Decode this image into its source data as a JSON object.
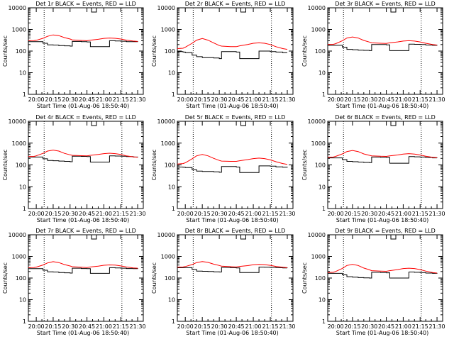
{
  "figure": {
    "background": "#ffffff",
    "axis_color": "#000000",
    "events_color": "#000000",
    "lld_color": "#ff0000"
  },
  "chart_data": [
    {
      "type": "line",
      "title": "Det 1r BLACK = Events, RED = LLD",
      "xlabel": "Start Time (01-Aug-06 18:50:40)",
      "ylabel": "Counts/sec",
      "ylim": [
        1,
        10000
      ],
      "yscale": "log",
      "x_tick_labels": [
        "20:00",
        "20:15",
        "20:30",
        "20:45",
        "21:00",
        "21:15",
        "21:30"
      ],
      "y_tick_labels": [
        "1",
        "10",
        "100",
        "1000",
        "10000"
      ],
      "dotted_markers": [
        "20:07",
        "21:16"
      ],
      "legend_box": "top-center",
      "x": [
        "19:53",
        "19:58",
        "20:00",
        "20:06",
        "20:10",
        "20:15",
        "20:20",
        "20:25",
        "20:30",
        "20:32",
        "20:40",
        "20:45",
        "20:48",
        "20:55",
        "21:00",
        "21:05",
        "21:10",
        "21:15",
        "21:20",
        "21:26",
        "21:30"
      ],
      "series": [
        {
          "name": "Events",
          "color": "#000000",
          "values": [
            270,
            270,
            270,
            230,
            195,
            190,
            180,
            175,
            170,
            280,
            270,
            265,
            160,
            160,
            160,
            300,
            295,
            285,
            270,
            270,
            265
          ]
        },
        {
          "name": "LLD",
          "color": "#ff0000",
          "values": [
            300,
            305,
            315,
            390,
            480,
            560,
            520,
            420,
            360,
            330,
            310,
            300,
            320,
            350,
            385,
            400,
            390,
            360,
            320,
            290,
            280
          ]
        }
      ]
    },
    {
      "type": "line",
      "title": "Det 2r BLACK = Events, RED = LLD",
      "xlabel": "Start Time (01-Aug-06 18:50:40)",
      "ylabel": "Counts/sec",
      "ylim": [
        1,
        10000
      ],
      "yscale": "log",
      "x_tick_labels": [
        "20:00",
        "20:15",
        "20:30",
        "20:45",
        "21:00",
        "21:15",
        "21:30"
      ],
      "y_tick_labels": [
        "1",
        "10",
        "100",
        "1000",
        "10000"
      ],
      "dotted_markers": [
        "20:07",
        "21:16"
      ],
      "legend_box": "top-center",
      "x": [
        "19:53",
        "19:58",
        "20:00",
        "20:06",
        "20:10",
        "20:15",
        "20:20",
        "20:25",
        "20:30",
        "20:32",
        "20:40",
        "20:45",
        "20:48",
        "20:55",
        "21:00",
        "21:05",
        "21:10",
        "21:15",
        "21:20",
        "21:26",
        "21:30"
      ],
      "series": [
        {
          "name": "Events",
          "color": "#000000",
          "values": [
            95,
            90,
            85,
            65,
            55,
            50,
            50,
            48,
            45,
            95,
            95,
            90,
            45,
            45,
            45,
            100,
            100,
            95,
            90,
            85,
            85
          ]
        },
        {
          "name": "LLD",
          "color": "#ff0000",
          "values": [
            130,
            135,
            150,
            230,
            320,
            380,
            320,
            240,
            180,
            170,
            160,
            160,
            175,
            200,
            230,
            240,
            230,
            200,
            160,
            130,
            120
          ]
        }
      ]
    },
    {
      "type": "line",
      "title": "Det 3r BLACK = Events, RED = LLD",
      "xlabel": "Start Time (01-Aug-06 18:50:40)",
      "ylabel": "Counts/sec",
      "ylim": [
        1,
        10000
      ],
      "yscale": "log",
      "x_tick_labels": [
        "20:00",
        "20:15",
        "20:30",
        "20:45",
        "21:00",
        "21:15",
        "21:30"
      ],
      "y_tick_labels": [
        "1",
        "10",
        "100",
        "1000",
        "10000"
      ],
      "dotted_markers": [
        "20:07",
        "21:16"
      ],
      "legend_box": "top-center",
      "x": [
        "19:53",
        "19:58",
        "20:00",
        "20:06",
        "20:10",
        "20:15",
        "20:20",
        "20:25",
        "20:30",
        "20:32",
        "20:40",
        "20:45",
        "20:48",
        "20:55",
        "21:00",
        "21:05",
        "21:10",
        "21:15",
        "21:20",
        "21:26",
        "21:30"
      ],
      "series": [
        {
          "name": "Events",
          "color": "#000000",
          "values": [
            185,
            185,
            185,
            150,
            120,
            115,
            110,
            108,
            105,
            200,
            200,
            195,
            105,
            105,
            105,
            210,
            205,
            200,
            190,
            185,
            180
          ]
        },
        {
          "name": "LLD",
          "color": "#ff0000",
          "values": [
            200,
            205,
            220,
            300,
            400,
            450,
            400,
            310,
            260,
            240,
            230,
            225,
            240,
            265,
            290,
            300,
            290,
            265,
            230,
            200,
            190
          ]
        }
      ]
    },
    {
      "type": "line",
      "title": "Det 4r BLACK = Events, RED = LLD",
      "xlabel": "Start Time (01-Aug-06 18:50:40)",
      "ylabel": "Counts/sec",
      "ylim": [
        1,
        10000
      ],
      "yscale": "log",
      "x_tick_labels": [
        "20:00",
        "20:15",
        "20:30",
        "20:45",
        "21:00",
        "21:15",
        "21:30"
      ],
      "y_tick_labels": [
        "1",
        "10",
        "100",
        "1000",
        "10000"
      ],
      "dotted_markers": [
        "20:07",
        "21:16"
      ],
      "legend_box": "top-center",
      "x": [
        "19:53",
        "19:58",
        "20:00",
        "20:06",
        "20:10",
        "20:15",
        "20:20",
        "20:25",
        "20:30",
        "20:32",
        "20:40",
        "20:45",
        "20:48",
        "20:55",
        "21:00",
        "21:05",
        "21:10",
        "21:15",
        "21:20",
        "21:26",
        "21:30"
      ],
      "series": [
        {
          "name": "Events",
          "color": "#000000",
          "values": [
            230,
            230,
            230,
            190,
            160,
            155,
            150,
            145,
            140,
            250,
            245,
            240,
            135,
            135,
            135,
            260,
            255,
            250,
            240,
            230,
            225
          ]
        },
        {
          "name": "LLD",
          "color": "#ff0000",
          "values": [
            240,
            245,
            260,
            340,
            430,
            480,
            430,
            340,
            290,
            275,
            265,
            260,
            275,
            300,
            330,
            345,
            330,
            300,
            260,
            235,
            225
          ]
        }
      ]
    },
    {
      "type": "line",
      "title": "Det 5r BLACK = Events, RED = LLD",
      "xlabel": "Start Time (01-Aug-06 18:50:40)",
      "ylabel": "Counts/sec",
      "ylim": [
        1,
        10000
      ],
      "yscale": "log",
      "x_tick_labels": [
        "20:00",
        "20:15",
        "20:30",
        "20:45",
        "21:00",
        "21:15",
        "21:30"
      ],
      "y_tick_labels": [
        "1",
        "10",
        "100",
        "1000",
        "10000"
      ],
      "dotted_markers": [
        "20:07",
        "21:16"
      ],
      "legend_box": "top-center",
      "x": [
        "19:53",
        "19:58",
        "20:00",
        "20:06",
        "20:10",
        "20:15",
        "20:20",
        "20:25",
        "20:30",
        "20:32",
        "20:40",
        "20:45",
        "20:48",
        "20:55",
        "21:00",
        "21:05",
        "21:10",
        "21:15",
        "21:20",
        "21:26",
        "21:30"
      ],
      "series": [
        {
          "name": "Events",
          "color": "#000000",
          "values": [
            80,
            78,
            75,
            60,
            52,
            50,
            50,
            48,
            46,
            85,
            85,
            80,
            45,
            45,
            45,
            90,
            90,
            88,
            82,
            78,
            75
          ]
        },
        {
          "name": "LLD",
          "color": "#ff0000",
          "values": [
            110,
            115,
            125,
            190,
            260,
            300,
            260,
            200,
            160,
            150,
            145,
            145,
            155,
            175,
            195,
            205,
            195,
            170,
            140,
            115,
            105
          ]
        }
      ]
    },
    {
      "type": "line",
      "title": "Det 6r BLACK = Events, RED = LLD",
      "xlabel": "Start Time (01-Aug-06 18:50:40)",
      "ylabel": "Counts/sec",
      "ylim": [
        1,
        10000
      ],
      "yscale": "log",
      "x_tick_labels": [
        "20:00",
        "20:15",
        "20:30",
        "20:45",
        "21:00",
        "21:15",
        "21:30"
      ],
      "y_tick_labels": [
        "1",
        "10",
        "100",
        "1000",
        "10000"
      ],
      "dotted_markers": [
        "20:07",
        "21:16"
      ],
      "legend_box": "top-center",
      "x": [
        "19:53",
        "19:58",
        "20:00",
        "20:06",
        "20:10",
        "20:15",
        "20:20",
        "20:25",
        "20:30",
        "20:32",
        "20:40",
        "20:45",
        "20:48",
        "20:55",
        "21:00",
        "21:05",
        "21:10",
        "21:15",
        "21:20",
        "21:26",
        "21:30"
      ],
      "series": [
        {
          "name": "Events",
          "color": "#000000",
          "values": [
            210,
            210,
            210,
            175,
            145,
            140,
            135,
            130,
            128,
            230,
            225,
            220,
            120,
            120,
            120,
            240,
            235,
            230,
            220,
            210,
            205
          ]
        },
        {
          "name": "LLD",
          "color": "#ff0000",
          "values": [
            225,
            230,
            245,
            320,
            410,
            460,
            410,
            320,
            275,
            260,
            250,
            245,
            260,
            285,
            315,
            330,
            315,
            285,
            250,
            225,
            215
          ]
        }
      ]
    },
    {
      "type": "line",
      "title": "Det 7r BLACK = Events, RED = LLD",
      "xlabel": "Start Time (01-Aug-06 18:50:40)",
      "ylabel": "Counts/sec",
      "ylim": [
        1,
        10000
      ],
      "yscale": "log",
      "x_tick_labels": [
        "20:00",
        "20:15",
        "20:30",
        "20:45",
        "21:00",
        "21:15",
        "21:30"
      ],
      "y_tick_labels": [
        "1",
        "10",
        "100",
        "1000",
        "10000"
      ],
      "dotted_markers": [
        "20:07",
        "21:16"
      ],
      "legend_box": "top-center",
      "x": [
        "19:53",
        "19:58",
        "20:00",
        "20:06",
        "20:10",
        "20:15",
        "20:20",
        "20:25",
        "20:30",
        "20:32",
        "20:40",
        "20:45",
        "20:48",
        "20:55",
        "21:00",
        "21:05",
        "21:10",
        "21:15",
        "21:20",
        "21:26",
        "21:30"
      ],
      "series": [
        {
          "name": "Events",
          "color": "#000000",
          "values": [
            270,
            270,
            270,
            230,
            195,
            190,
            180,
            175,
            170,
            285,
            275,
            270,
            165,
            165,
            165,
            300,
            295,
            285,
            275,
            270,
            265
          ]
        },
        {
          "name": "LLD",
          "color": "#ff0000",
          "values": [
            300,
            305,
            320,
            400,
            500,
            570,
            520,
            420,
            360,
            335,
            315,
            305,
            325,
            355,
            390,
            405,
            395,
            365,
            325,
            295,
            285
          ]
        }
      ]
    },
    {
      "type": "line",
      "title": "Det 8r BLACK = Events, RED = LLD",
      "xlabel": "Start Time (01-Aug-06 18:50:40)",
      "ylabel": "Counts/sec",
      "ylim": [
        1,
        10000
      ],
      "yscale": "log",
      "x_tick_labels": [
        "20:00",
        "20:15",
        "20:30",
        "20:45",
        "21:00",
        "21:15",
        "21:30"
      ],
      "y_tick_labels": [
        "1",
        "10",
        "100",
        "1000",
        "10000"
      ],
      "dotted_markers": [
        "20:07",
        "21:16"
      ],
      "legend_box": "top-center",
      "x": [
        "19:53",
        "19:58",
        "20:00",
        "20:06",
        "20:10",
        "20:15",
        "20:20",
        "20:25",
        "20:30",
        "20:32",
        "20:40",
        "20:45",
        "20:48",
        "20:55",
        "21:00",
        "21:05",
        "21:10",
        "21:15",
        "21:20",
        "21:26",
        "21:30"
      ],
      "series": [
        {
          "name": "Events",
          "color": "#000000",
          "values": [
            300,
            300,
            300,
            250,
            210,
            205,
            200,
            195,
            190,
            310,
            300,
            295,
            180,
            180,
            180,
            320,
            315,
            310,
            300,
            295,
            290
          ]
        },
        {
          "name": "LLD",
          "color": "#ff0000",
          "values": [
            320,
            325,
            340,
            420,
            520,
            580,
            530,
            440,
            380,
            355,
            335,
            325,
            345,
            375,
            410,
            425,
            415,
            385,
            345,
            315,
            300
          ]
        }
      ]
    },
    {
      "type": "line",
      "title": "Det 9r BLACK = Events, RED = LLD",
      "xlabel": "Start Time (01-Aug-06 18:50:40)",
      "ylabel": "Counts/sec",
      "ylim": [
        1,
        10000
      ],
      "yscale": "log",
      "x_tick_labels": [
        "20:00",
        "20:15",
        "20:30",
        "20:45",
        "21:00",
        "21:15",
        "21:30"
      ],
      "y_tick_labels": [
        "1",
        "10",
        "100",
        "1000",
        "10000"
      ],
      "dotted_markers": [
        "20:07",
        "21:16"
      ],
      "legend_box": "top-center",
      "x": [
        "19:53",
        "19:58",
        "20:00",
        "20:06",
        "20:10",
        "20:15",
        "20:20",
        "20:25",
        "20:30",
        "20:32",
        "20:40",
        "20:45",
        "20:48",
        "20:55",
        "21:00",
        "21:05",
        "21:10",
        "21:15",
        "21:20",
        "21:26",
        "21:30"
      ],
      "series": [
        {
          "name": "Events",
          "color": "#000000",
          "values": [
            165,
            165,
            165,
            140,
            115,
            110,
            105,
            102,
            100,
            185,
            180,
            175,
            100,
            100,
            100,
            190,
            185,
            180,
            170,
            165,
            160
          ]
        },
        {
          "name": "LLD",
          "color": "#ff0000",
          "values": [
            180,
            185,
            200,
            280,
            380,
            430,
            380,
            290,
            240,
            220,
            210,
            205,
            220,
            245,
            275,
            285,
            275,
            245,
            210,
            180,
            170
          ]
        }
      ]
    }
  ]
}
